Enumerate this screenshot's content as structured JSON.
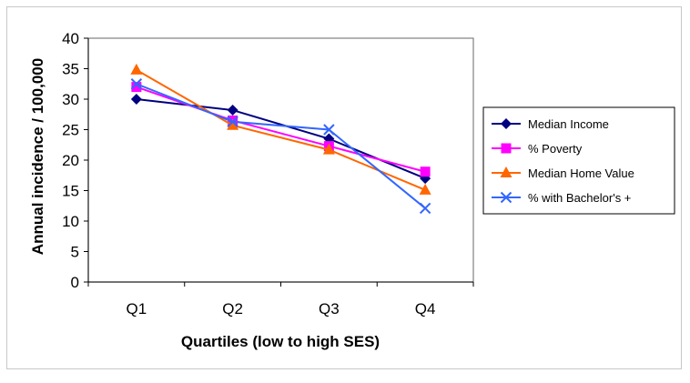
{
  "chart_data": {
    "type": "line",
    "title": "",
    "xlabel": "Quartiles (low to high SES)",
    "ylabel": "Annual incidence / 100,000",
    "categories": [
      "Q1",
      "Q2",
      "Q3",
      "Q4"
    ],
    "ylim": [
      0,
      40
    ],
    "yticks": [
      0,
      5,
      10,
      15,
      20,
      25,
      30,
      35,
      40
    ],
    "grid": false,
    "legend_position": "right",
    "series": [
      {
        "name": "Median Income",
        "values": [
          30.0,
          28.2,
          23.5,
          17.0
        ],
        "color": "#000080",
        "marker": "diamond"
      },
      {
        "name": "% Poverty",
        "values": [
          32.0,
          26.5,
          22.3,
          18.1
        ],
        "color": "#ff00ff",
        "marker": "square"
      },
      {
        "name": "Median Home Value",
        "values": [
          34.8,
          25.7,
          21.7,
          15.1
        ],
        "color": "#ff6600",
        "marker": "triangle"
      },
      {
        "name": "% with Bachelor's +",
        "values": [
          32.5,
          26.3,
          25.0,
          12.1
        ],
        "color": "#3366ff",
        "marker": "x"
      }
    ]
  }
}
